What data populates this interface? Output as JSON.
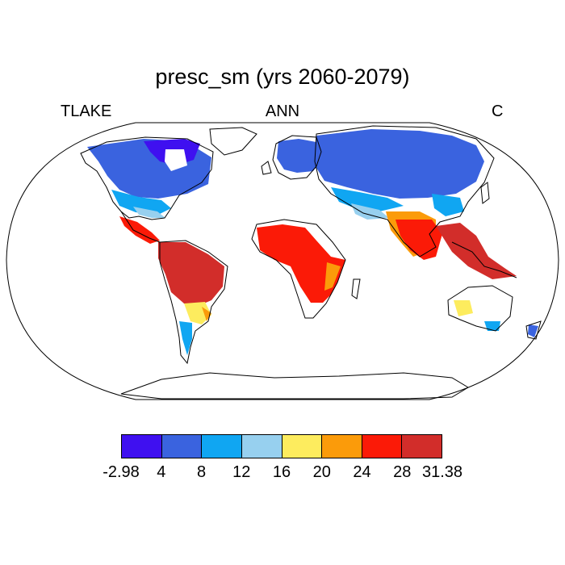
{
  "title": "presc_sm (yrs 2060-2079)",
  "left_label": "TLAKE",
  "center_label": "ANN",
  "right_label": "C",
  "colorbar": {
    "colors": [
      "#3f10f0",
      "#3a63df",
      "#10a6f2",
      "#97d0ef",
      "#fdec5e",
      "#fb9b0a",
      "#fb1a07",
      "#d22d2a"
    ],
    "labels": [
      "-2.98",
      "4",
      "8",
      "12",
      "16",
      "20",
      "24",
      "28",
      "31.38"
    ]
  }
}
